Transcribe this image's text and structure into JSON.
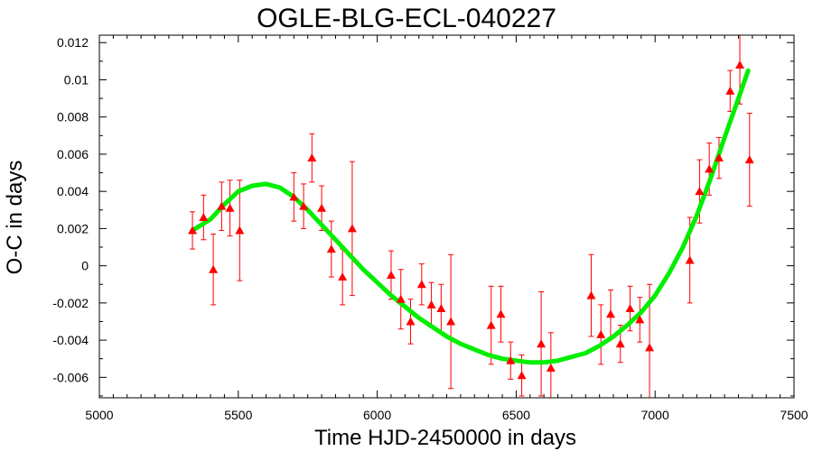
{
  "chart_data": {
    "type": "scatter",
    "title": "OGLE-BLG-ECL-040227",
    "xlabel": "Time HJD-2450000 in days",
    "ylabel": "O-C in days",
    "xlim": [
      5000,
      7500
    ],
    "ylim": [
      -0.0071,
      0.0124
    ],
    "xticks": [
      5000,
      5500,
      6000,
      6500,
      7000,
      7500
    ],
    "xtick_labels": [
      "5000",
      "5500",
      "6000",
      "6500",
      "7000",
      "7500"
    ],
    "yticks": [
      -0.006,
      -0.004,
      -0.002,
      0,
      0.002,
      0.004,
      0.006,
      0.008,
      0.01,
      0.012
    ],
    "ytick_labels": [
      "-0.006",
      "-0.004",
      "-0.002",
      "0",
      "0.002",
      "0.004",
      "0.006",
      "0.008",
      "0.01",
      "0.012"
    ],
    "grid": false,
    "series": [
      {
        "kind": "points-with-errorbars",
        "marker": "triangle",
        "color": "#ff0000",
        "points": [
          {
            "x": 5335,
            "y": 0.0019,
            "err": 0.001
          },
          {
            "x": 5375,
            "y": 0.0026,
            "err": 0.0012
          },
          {
            "x": 5410,
            "y": -0.0002,
            "err": 0.0019
          },
          {
            "x": 5440,
            "y": 0.0032,
            "err": 0.0013
          },
          {
            "x": 5470,
            "y": 0.0031,
            "err": 0.0015
          },
          {
            "x": 5505,
            "y": 0.0019,
            "err": 0.0027
          },
          {
            "x": 5700,
            "y": 0.0037,
            "err": 0.0013
          },
          {
            "x": 5735,
            "y": 0.0032,
            "err": 0.0012
          },
          {
            "x": 5765,
            "y": 0.0058,
            "err": 0.0013
          },
          {
            "x": 5800,
            "y": 0.0031,
            "err": 0.0012
          },
          {
            "x": 5835,
            "y": 0.0009,
            "err": 0.0015
          },
          {
            "x": 5875,
            "y": -0.0006,
            "err": 0.0015
          },
          {
            "x": 5910,
            "y": 0.002,
            "err": 0.0036
          },
          {
            "x": 6050,
            "y": -0.0005,
            "err": 0.0013
          },
          {
            "x": 6085,
            "y": -0.0018,
            "err": 0.0016
          },
          {
            "x": 6120,
            "y": -0.003,
            "err": 0.0012
          },
          {
            "x": 6160,
            "y": -0.001,
            "err": 0.0011
          },
          {
            "x": 6195,
            "y": -0.0021,
            "err": 0.0012
          },
          {
            "x": 6230,
            "y": -0.0023,
            "err": 0.0013
          },
          {
            "x": 6265,
            "y": -0.003,
            "err": 0.0036
          },
          {
            "x": 6410,
            "y": -0.0032,
            "err": 0.0021
          },
          {
            "x": 6445,
            "y": -0.0026,
            "err": 0.0015
          },
          {
            "x": 6480,
            "y": -0.0051,
            "err": 0.001
          },
          {
            "x": 6520,
            "y": -0.0059,
            "err": 0.0011
          },
          {
            "x": 6590,
            "y": -0.0042,
            "err": 0.0028
          },
          {
            "x": 6625,
            "y": -0.0055,
            "err": 0.0019
          },
          {
            "x": 6770,
            "y": -0.0016,
            "err": 0.0022
          },
          {
            "x": 6805,
            "y": -0.0037,
            "err": 0.0016
          },
          {
            "x": 6840,
            "y": -0.0026,
            "err": 0.0013
          },
          {
            "x": 6875,
            "y": -0.0042,
            "err": 0.001
          },
          {
            "x": 6910,
            "y": -0.0023,
            "err": 0.0012
          },
          {
            "x": 6945,
            "y": -0.0029,
            "err": 0.0012
          },
          {
            "x": 6980,
            "y": -0.0044,
            "err": 0.0034
          },
          {
            "x": 7125,
            "y": 0.0003,
            "err": 0.0023
          },
          {
            "x": 7160,
            "y": 0.004,
            "err": 0.0017
          },
          {
            "x": 7195,
            "y": 0.0052,
            "err": 0.0014
          },
          {
            "x": 7230,
            "y": 0.0058,
            "err": 0.0011
          },
          {
            "x": 7270,
            "y": 0.0094,
            "err": 0.0011
          },
          {
            "x": 7305,
            "y": 0.0108,
            "err": 0.0021
          },
          {
            "x": 7340,
            "y": 0.0057,
            "err": 0.0025
          }
        ]
      },
      {
        "kind": "fit-curve",
        "color": "#00ee00",
        "points": [
          {
            "x": 5335,
            "y": 0.0019
          },
          {
            "x": 5400,
            "y": 0.0025
          },
          {
            "x": 5450,
            "y": 0.0033
          },
          {
            "x": 5500,
            "y": 0.004
          },
          {
            "x": 5550,
            "y": 0.0043
          },
          {
            "x": 5600,
            "y": 0.0044
          },
          {
            "x": 5650,
            "y": 0.0042
          },
          {
            "x": 5700,
            "y": 0.0037
          },
          {
            "x": 5750,
            "y": 0.003
          },
          {
            "x": 5800,
            "y": 0.0022
          },
          {
            "x": 5850,
            "y": 0.0014
          },
          {
            "x": 5900,
            "y": 0.0006
          },
          {
            "x": 5950,
            "y": -0.0002
          },
          {
            "x": 6000,
            "y": -0.0009
          },
          {
            "x": 6050,
            "y": -0.0016
          },
          {
            "x": 6100,
            "y": -0.0022
          },
          {
            "x": 6150,
            "y": -0.0028
          },
          {
            "x": 6200,
            "y": -0.0033
          },
          {
            "x": 6250,
            "y": -0.0038
          },
          {
            "x": 6300,
            "y": -0.0042
          },
          {
            "x": 6350,
            "y": -0.0045
          },
          {
            "x": 6400,
            "y": -0.0048
          },
          {
            "x": 6450,
            "y": -0.005
          },
          {
            "x": 6500,
            "y": -0.0051
          },
          {
            "x": 6550,
            "y": -0.0052
          },
          {
            "x": 6600,
            "y": -0.0052
          },
          {
            "x": 6650,
            "y": -0.0051
          },
          {
            "x": 6700,
            "y": -0.0049
          },
          {
            "x": 6750,
            "y": -0.0047
          },
          {
            "x": 6800,
            "y": -0.0043
          },
          {
            "x": 6850,
            "y": -0.0038
          },
          {
            "x": 6900,
            "y": -0.0032
          },
          {
            "x": 6950,
            "y": -0.0025
          },
          {
            "x": 7000,
            "y": -0.0016
          },
          {
            "x": 7050,
            "y": -0.0004
          },
          {
            "x": 7100,
            "y": 0.001
          },
          {
            "x": 7150,
            "y": 0.0027
          },
          {
            "x": 7200,
            "y": 0.0047
          },
          {
            "x": 7250,
            "y": 0.0069
          },
          {
            "x": 7300,
            "y": 0.009
          },
          {
            "x": 7335,
            "y": 0.0105
          }
        ]
      }
    ]
  }
}
